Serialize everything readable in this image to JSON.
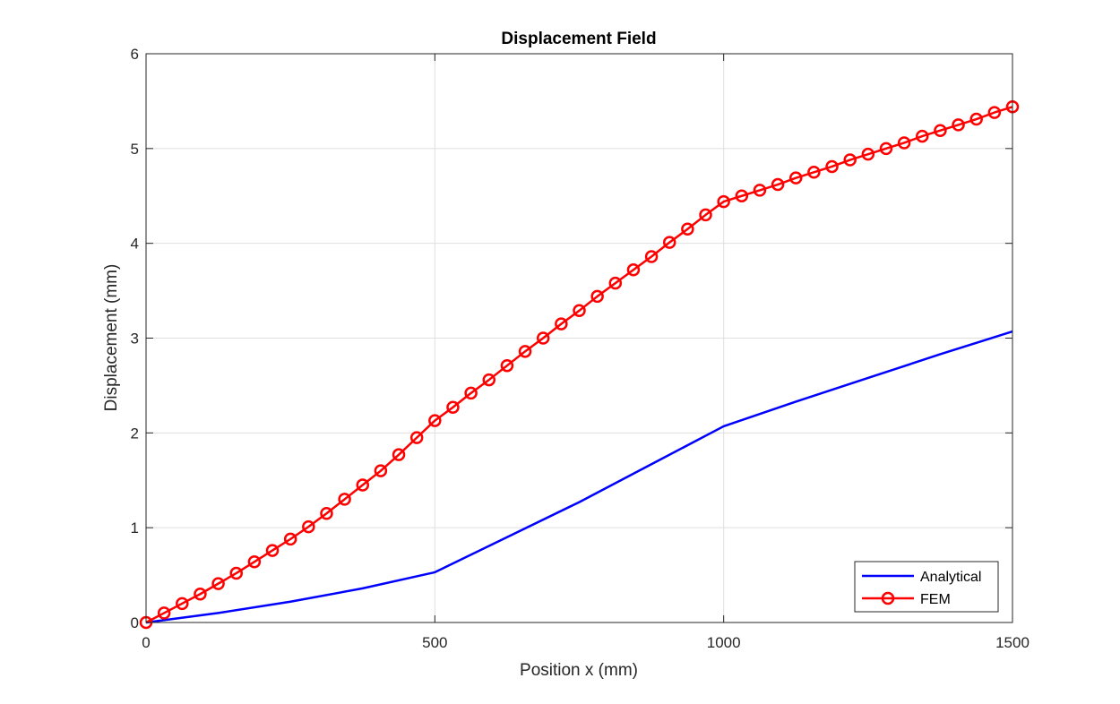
{
  "chart_data": {
    "type": "line",
    "title": "Displacement Field",
    "xlabel": "Position x (mm)",
    "ylabel": "Displacement (mm)",
    "xlim": [
      0,
      1500
    ],
    "ylim": [
      0,
      6
    ],
    "xticks": [
      0,
      500,
      1000,
      1500
    ],
    "yticks": [
      0,
      1,
      2,
      3,
      4,
      5,
      6
    ],
    "grid": true,
    "legend_position": "bottom-right",
    "series": [
      {
        "name": "Analytical",
        "color": "#0000ff",
        "marker": "none",
        "x": [
          0,
          125,
          250,
          375,
          500,
          625,
          750,
          875,
          1000,
          1125,
          1250,
          1375,
          1500
        ],
        "y": [
          0,
          0.1,
          0.22,
          0.36,
          0.53,
          0.9,
          1.27,
          1.67,
          2.07,
          2.33,
          2.58,
          2.83,
          3.07
        ]
      },
      {
        "name": "FEM",
        "color": "#ff0000",
        "marker": "circle",
        "x": [
          0,
          31.25,
          62.5,
          93.75,
          125,
          156.25,
          187.5,
          218.75,
          250,
          281.25,
          312.5,
          343.75,
          375,
          406.25,
          437.5,
          468.75,
          500,
          531.25,
          562.5,
          593.75,
          625,
          656.25,
          687.5,
          718.75,
          750,
          781.25,
          812.5,
          843.75,
          875,
          906.25,
          937.5,
          968.75,
          1000,
          1031.25,
          1062.5,
          1093.75,
          1125,
          1156.25,
          1187.5,
          1218.75,
          1250,
          1281.25,
          1312.5,
          1343.75,
          1375,
          1406.25,
          1437.5,
          1468.75,
          1500
        ],
        "y": [
          0,
          0.1,
          0.2,
          0.3,
          0.41,
          0.52,
          0.64,
          0.76,
          0.88,
          1.01,
          1.15,
          1.3,
          1.45,
          1.6,
          1.77,
          1.95,
          2.13,
          2.27,
          2.42,
          2.56,
          2.71,
          2.86,
          3.0,
          3.15,
          3.29,
          3.44,
          3.58,
          3.72,
          3.86,
          4.01,
          4.15,
          4.3,
          4.44,
          4.5,
          4.56,
          4.62,
          4.69,
          4.75,
          4.81,
          4.88,
          4.94,
          5.0,
          5.06,
          5.13,
          5.19,
          5.25,
          5.31,
          5.38,
          5.44
        ]
      }
    ]
  }
}
